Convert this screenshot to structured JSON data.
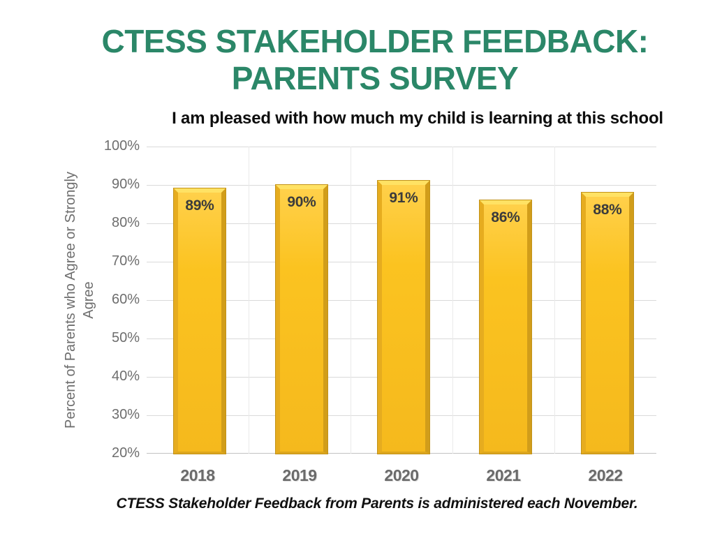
{
  "slide": {
    "title_line1": "CTESS STAKEHOLDER FEEDBACK:",
    "title_line2": "PARENTS SURVEY",
    "footnote": "CTESS Stakeholder Feedback from Parents is administered each November."
  },
  "colors": {
    "title_green": "#2B8768",
    "bar_fill": "#FBC320",
    "bar_bevel_light": "#FFE264",
    "bar_bevel_dark": "#D19D1A",
    "bar_outline": "#C29218",
    "gridline": "#DADADA",
    "axis_text": "#6E6E6E",
    "bar_label_text": "#3B3B3B"
  },
  "chart_data": {
    "type": "bar",
    "title": "I am pleased with how much my child is learning at this school",
    "categories": [
      "2018",
      "2019",
      "2020",
      "2021",
      "2022"
    ],
    "values": [
      89,
      90,
      91,
      86,
      88
    ],
    "value_labels": [
      "89%",
      "90%",
      "91%",
      "86%",
      "88%"
    ],
    "xlabel": "",
    "ylabel": "Percent of Parents who Agree or Strongly Agree",
    "ylim": [
      20,
      100
    ],
    "ytick_step": 10,
    "yticks": [
      "100%",
      "90%",
      "80%",
      "70%",
      "60%",
      "50%",
      "40%",
      "30%",
      "20%"
    ],
    "grid": true,
    "legend_position": "none",
    "bar_color": "#FBC320"
  }
}
